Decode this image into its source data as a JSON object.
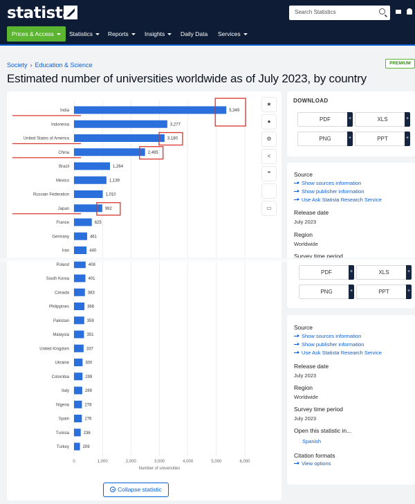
{
  "header": {
    "logo_text": "statista",
    "search_placeholder": "Search Statistics",
    "nav": [
      {
        "label": "Prices & Access",
        "dropdown": true,
        "active": true
      },
      {
        "label": "Statistics",
        "dropdown": true
      },
      {
        "label": "Reports",
        "dropdown": true
      },
      {
        "label": "Insights",
        "dropdown": true
      },
      {
        "label": "Daily Data",
        "dropdown": false
      },
      {
        "label": "Services",
        "dropdown": true
      }
    ]
  },
  "breadcrumb": {
    "items": [
      "Society",
      "Education & Science"
    ]
  },
  "badge": "PREMIUM",
  "page_title": "Estimated number of universities worldwide as of July 2023, by country",
  "chart_data": {
    "type": "bar",
    "orientation": "horizontal",
    "categories": [
      "India",
      "Indonesia",
      "United States of America",
      "China",
      "Brazil",
      "Mexico",
      "Russian Federation",
      "Japan",
      "France",
      "Germany",
      "Iran",
      "Poland",
      "South Korea",
      "Canada",
      "Philippines",
      "Pakistan",
      "Malaysia",
      "United Kingdom",
      "Ukraine",
      "Colombia",
      "Italy",
      "Nigeria",
      "Spain",
      "Tunisia",
      "Turkey"
    ],
    "values": [
      5349,
      3277,
      3180,
      2495,
      1264,
      1139,
      1010,
      992,
      625,
      461,
      440,
      408,
      401,
      383,
      366,
      359,
      351,
      337,
      300,
      299,
      289,
      278,
      276,
      236,
      209
    ],
    "value_labels": [
      "5,349",
      "3,277",
      "3,180",
      "2,495",
      "1,264",
      "1,139",
      "1,010",
      "992",
      "625",
      "461",
      "440",
      "408",
      "401",
      "383",
      "366",
      "359",
      "351",
      "337",
      "300",
      "299",
      "289",
      "278",
      "276",
      "236",
      "209"
    ],
    "xlim": [
      0,
      6000
    ],
    "ticks": [
      0,
      1000,
      2000,
      3000,
      4000,
      5000,
      6000
    ],
    "tick_labels": [
      "0",
      "1,000",
      "2,000",
      "3,000",
      "4,000",
      "5,000",
      "6,000"
    ],
    "xlabel": "Number of universities",
    "grid": true,
    "highlighted": [
      "India",
      "United States of America",
      "China",
      "Japan"
    ],
    "bar_color": "#2a6fdb",
    "annotation_color": "#d9342b"
  },
  "download": {
    "title": "DOWNLOAD",
    "formats": [
      "PDF",
      "XLS",
      "PNG",
      "PPT"
    ],
    "plus": "+"
  },
  "info": {
    "source_label": "Source",
    "links": [
      "Show sources information",
      "Show publisher information",
      "Use Ask Statista Research Service"
    ],
    "release_label": "Release date",
    "release_value": "July 2023",
    "region_label": "Region",
    "region_value": "Worldwide",
    "survey_label": "Survey time period",
    "survey_value": "July 2023",
    "open_label": "Open this statistic in...",
    "open_value": "Spanish",
    "citation_label": "Citation formats",
    "citation_link": "View options"
  },
  "collapse_label": "Collapse statistic"
}
